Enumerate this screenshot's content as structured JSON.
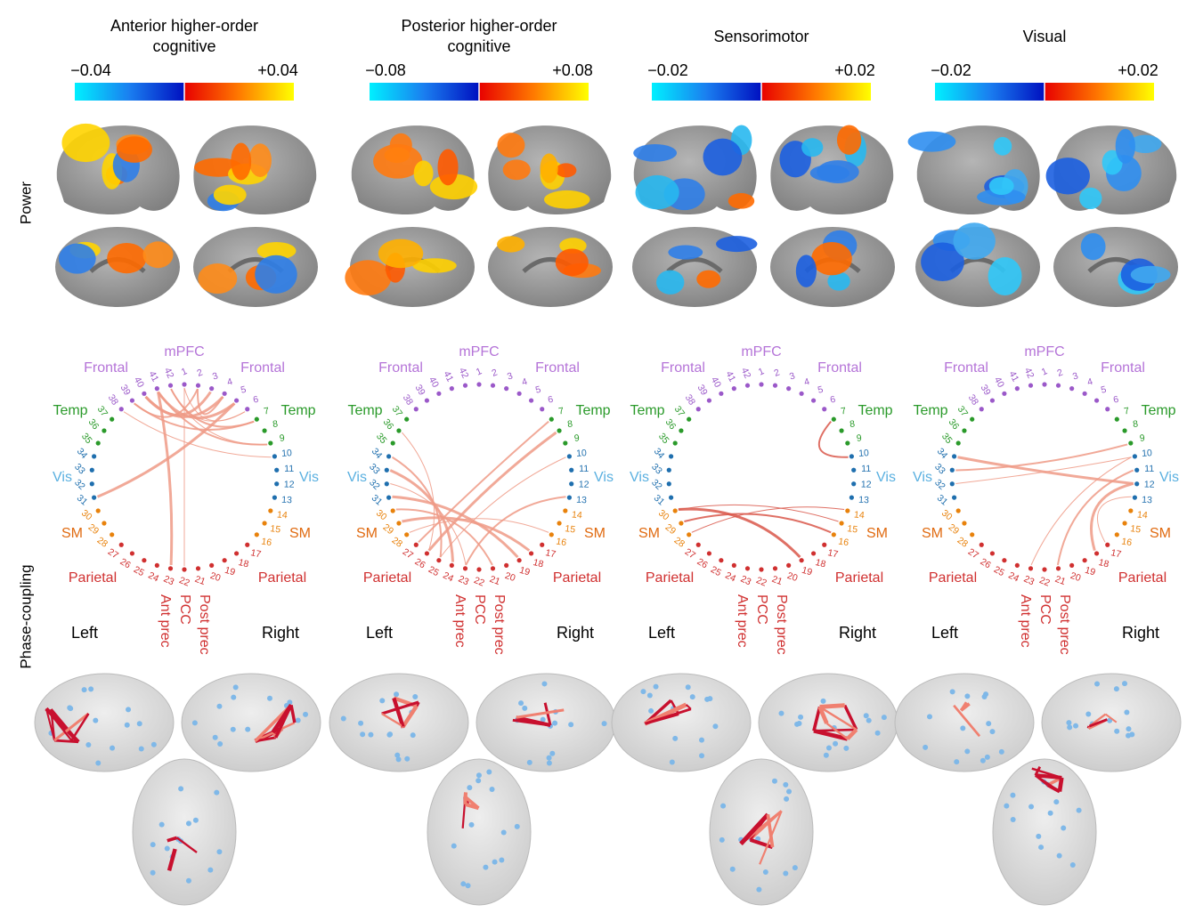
{
  "row_labels": [
    "Power",
    "Phase-coupling"
  ],
  "columns": [
    {
      "title": [
        "Anterior higher-order",
        "cognitive"
      ],
      "scale_min": "−0.04",
      "scale_max": "+0.04"
    },
    {
      "title": [
        "Posterior higher-order",
        "cognitive"
      ],
      "scale_min": "−0.08",
      "scale_max": "+0.08"
    },
    {
      "title": [
        "Sensorimotor"
      ],
      "scale_min": "−0.02",
      "scale_max": "+0.02"
    },
    {
      "title": [
        "Visual"
      ],
      "scale_min": "−0.02",
      "scale_max": "+0.02"
    }
  ],
  "circle": {
    "nodes": [
      1,
      2,
      3,
      4,
      5,
      6,
      7,
      8,
      9,
      10,
      11,
      12,
      13,
      14,
      15,
      16,
      17,
      18,
      19,
      20,
      21,
      22,
      23,
      24,
      25,
      26,
      27,
      28,
      29,
      30,
      31,
      32,
      33,
      34,
      35,
      36,
      37,
      38,
      39,
      40,
      41,
      42
    ],
    "regions": {
      "mpfc": "mPFC",
      "frontal": "Frontal",
      "temp": "Temp",
      "vis": "Vis",
      "sm": "SM",
      "parietal": "Parietal"
    },
    "precuneus": [
      "Ant prec",
      "PCC",
      "Post prec"
    ],
    "left": "Left",
    "right": "Right"
  }
}
